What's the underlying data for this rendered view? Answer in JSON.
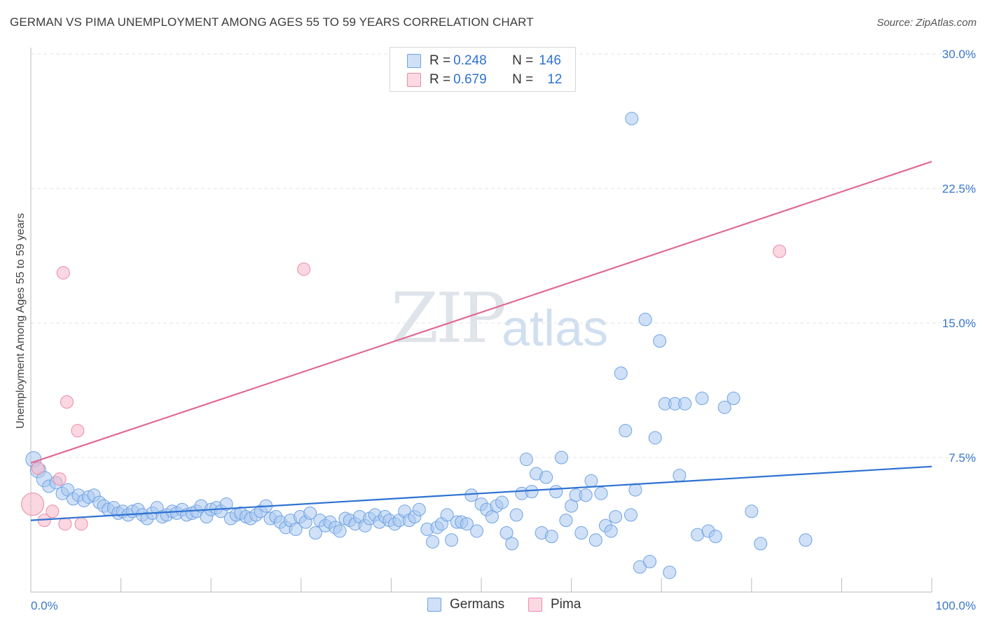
{
  "title": "GERMAN VS PIMA UNEMPLOYMENT AMONG AGES 55 TO 59 YEARS CORRELATION CHART",
  "source": "Source: ZipAtlas.com",
  "watermark": {
    "zip": "ZIP",
    "atlas": "atlas"
  },
  "legend": {
    "rows": [
      {
        "r_label": "R = ",
        "r_value": "0.248",
        "n_label": "N = ",
        "n_value": "146",
        "color": "#a9c8f0"
      },
      {
        "r_label": "R = ",
        "r_value": "0.679",
        "n_label": "N = ",
        "n_value": "12",
        "color": "#f5b7c8"
      }
    ]
  },
  "bottom_legend": [
    {
      "label": "Germans",
      "color": "#a9c8f0"
    },
    {
      "label": "Pima",
      "color": "#f5b7c8"
    }
  ],
  "chart_data": {
    "type": "scatter",
    "title": "GERMAN VS PIMA UNEMPLOYMENT AMONG AGES 55 TO 59 YEARS CORRELATION CHART",
    "xlabel": "",
    "ylabel": "Unemployment Among Ages 55 to 59 years",
    "xlim": [
      0,
      100
    ],
    "ylim": [
      0,
      30
    ],
    "x_tick_labels": [
      "0.0%",
      "100.0%"
    ],
    "y_ticks": [
      7.5,
      15.0,
      22.5,
      30.0
    ],
    "y_tick_labels": [
      "7.5%",
      "15.0%",
      "22.5%",
      "30.0%"
    ],
    "grid": "horizontal dashed",
    "series": [
      {
        "name": "Germans",
        "color": "#6fa3e3",
        "fill": "#a9c8f0",
        "trend": {
          "x": [
            0,
            100
          ],
          "y": [
            4.0,
            7.0
          ],
          "color": "#2e72d2"
        },
        "points": [
          [
            0.3,
            7.4
          ],
          [
            0.8,
            6.8
          ],
          [
            1.5,
            6.3
          ],
          [
            2.0,
            5.9
          ],
          [
            2.8,
            6.1
          ],
          [
            3.5,
            5.5
          ],
          [
            4.1,
            5.7
          ],
          [
            4.7,
            5.2
          ],
          [
            5.3,
            5.4
          ],
          [
            5.9,
            5.1
          ],
          [
            6.4,
            5.3
          ],
          [
            7.0,
            5.4
          ],
          [
            7.6,
            5.0
          ],
          [
            8.1,
            4.8
          ],
          [
            8.6,
            4.6
          ],
          [
            9.2,
            4.7
          ],
          [
            9.7,
            4.4
          ],
          [
            10.2,
            4.5
          ],
          [
            10.8,
            4.3
          ],
          [
            11.3,
            4.5
          ],
          [
            11.9,
            4.6
          ],
          [
            12.4,
            4.3
          ],
          [
            12.9,
            4.1
          ],
          [
            13.5,
            4.4
          ],
          [
            14.0,
            4.7
          ],
          [
            14.6,
            4.2
          ],
          [
            15.1,
            4.3
          ],
          [
            15.7,
            4.5
          ],
          [
            16.2,
            4.4
          ],
          [
            16.8,
            4.6
          ],
          [
            17.3,
            4.3
          ],
          [
            17.9,
            4.4
          ],
          [
            18.4,
            4.5
          ],
          [
            18.9,
            4.8
          ],
          [
            19.5,
            4.2
          ],
          [
            20.0,
            4.6
          ],
          [
            20.6,
            4.7
          ],
          [
            21.1,
            4.5
          ],
          [
            21.7,
            4.9
          ],
          [
            22.2,
            4.1
          ],
          [
            22.8,
            4.3
          ],
          [
            23.3,
            4.4
          ],
          [
            23.9,
            4.2
          ],
          [
            24.4,
            4.1
          ],
          [
            25.0,
            4.3
          ],
          [
            25.5,
            4.5
          ],
          [
            26.1,
            4.8
          ],
          [
            26.6,
            4.1
          ],
          [
            27.2,
            4.2
          ],
          [
            27.7,
            3.9
          ],
          [
            28.3,
            3.6
          ],
          [
            28.8,
            4.0
          ],
          [
            29.4,
            3.5
          ],
          [
            29.9,
            4.2
          ],
          [
            30.5,
            3.9
          ],
          [
            31.0,
            4.4
          ],
          [
            31.6,
            3.3
          ],
          [
            32.1,
            4.0
          ],
          [
            32.7,
            3.7
          ],
          [
            33.2,
            3.9
          ],
          [
            33.8,
            3.6
          ],
          [
            34.3,
            3.4
          ],
          [
            34.9,
            4.1
          ],
          [
            35.4,
            4.0
          ],
          [
            36.0,
            3.8
          ],
          [
            36.5,
            4.2
          ],
          [
            37.1,
            3.7
          ],
          [
            37.6,
            4.1
          ],
          [
            38.2,
            4.3
          ],
          [
            38.7,
            3.9
          ],
          [
            39.3,
            4.2
          ],
          [
            39.8,
            4.0
          ],
          [
            40.4,
            3.8
          ],
          [
            40.9,
            4.0
          ],
          [
            41.5,
            4.5
          ],
          [
            42.0,
            4.0
          ],
          [
            42.6,
            4.2
          ],
          [
            43.1,
            4.6
          ],
          [
            44.0,
            3.5
          ],
          [
            44.6,
            2.8
          ],
          [
            45.1,
            3.6
          ],
          [
            45.6,
            3.8
          ],
          [
            46.2,
            4.3
          ],
          [
            46.7,
            2.9
          ],
          [
            47.3,
            3.9
          ],
          [
            47.8,
            3.9
          ],
          [
            48.4,
            3.8
          ],
          [
            48.9,
            5.4
          ],
          [
            49.5,
            3.4
          ],
          [
            50.0,
            4.9
          ],
          [
            50.6,
            4.6
          ],
          [
            51.2,
            4.2
          ],
          [
            51.7,
            4.8
          ],
          [
            52.3,
            5.0
          ],
          [
            52.8,
            3.3
          ],
          [
            53.4,
            2.7
          ],
          [
            53.9,
            4.3
          ],
          [
            54.5,
            5.5
          ],
          [
            55.0,
            7.4
          ],
          [
            55.6,
            5.6
          ],
          [
            56.1,
            6.6
          ],
          [
            56.7,
            3.3
          ],
          [
            57.2,
            6.4
          ],
          [
            57.8,
            3.1
          ],
          [
            58.3,
            5.6
          ],
          [
            58.9,
            7.5
          ],
          [
            59.4,
            4.0
          ],
          [
            60.0,
            4.8
          ],
          [
            60.5,
            5.4
          ],
          [
            61.1,
            3.3
          ],
          [
            61.6,
            5.4
          ],
          [
            62.2,
            6.2
          ],
          [
            62.7,
            2.9
          ],
          [
            63.3,
            5.5
          ],
          [
            63.8,
            3.7
          ],
          [
            64.4,
            3.4
          ],
          [
            64.9,
            4.2
          ],
          [
            65.5,
            12.2
          ],
          [
            66.0,
            9.0
          ],
          [
            66.6,
            4.3
          ],
          [
            67.1,
            5.7
          ],
          [
            67.6,
            1.4
          ],
          [
            68.2,
            15.2
          ],
          [
            68.7,
            1.7
          ],
          [
            69.3,
            8.6
          ],
          [
            69.8,
            14.0
          ],
          [
            70.4,
            10.5
          ],
          [
            70.9,
            1.1
          ],
          [
            71.5,
            10.5
          ],
          [
            72.0,
            6.5
          ],
          [
            72.6,
            10.5
          ],
          [
            74.0,
            3.2
          ],
          [
            74.5,
            10.8
          ],
          [
            75.2,
            3.4
          ],
          [
            76.0,
            3.1
          ],
          [
            77.0,
            10.3
          ],
          [
            78.0,
            10.8
          ],
          [
            80.0,
            4.5
          ],
          [
            81.0,
            2.7
          ],
          [
            86.0,
            2.9
          ],
          [
            66.7,
            26.4
          ]
        ],
        "sizes_large_first": true
      },
      {
        "name": "Pima",
        "color": "#ec8aa8",
        "fill": "#f5b7c8",
        "trend": {
          "x": [
            0,
            100
          ],
          "y": [
            7.2,
            24.0
          ],
          "color": "#e06a93"
        },
        "points": [
          [
            0.2,
            4.9
          ],
          [
            0.8,
            6.9
          ],
          [
            1.5,
            4.0
          ],
          [
            2.4,
            4.5
          ],
          [
            3.2,
            6.3
          ],
          [
            3.6,
            17.8
          ],
          [
            3.8,
            3.8
          ],
          [
            4.0,
            10.6
          ],
          [
            5.2,
            9.0
          ],
          [
            5.6,
            3.8
          ],
          [
            30.3,
            18.0
          ],
          [
            83.1,
            19.0
          ]
        ]
      }
    ]
  }
}
